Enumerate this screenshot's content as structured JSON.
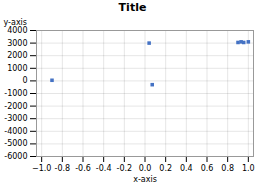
{
  "chart_data": {
    "type": "scatter",
    "title": "Title",
    "xlabel": "x-axis",
    "ylabel": "y-axis",
    "x": [
      -0.9,
      0.04,
      0.07,
      0.9,
      0.93,
      0.955,
      1.0
    ],
    "values": [
      50,
      3000,
      -300,
      3050,
      3100,
      3050,
      3100
    ],
    "color": "#4472C4",
    "marker": "square",
    "xlim": [
      -1.05,
      1.05
    ],
    "ylim": [
      -6000,
      4000
    ],
    "xticks": [
      {
        "value": -1.0,
        "label": "−1.0"
      },
      -0.8,
      -0.6,
      -0.4,
      -0.2,
      {
        "value": 0.0,
        "label": "0.0"
      },
      0.2,
      0.4,
      0.6,
      0.8,
      {
        "value": 1.0,
        "label": "1.0"
      }
    ],
    "yticks": [
      4000,
      3000,
      2000,
      1000,
      0,
      -1000,
      -2000,
      -3000,
      -4000,
      -5000,
      -6000
    ],
    "grid": true
  }
}
